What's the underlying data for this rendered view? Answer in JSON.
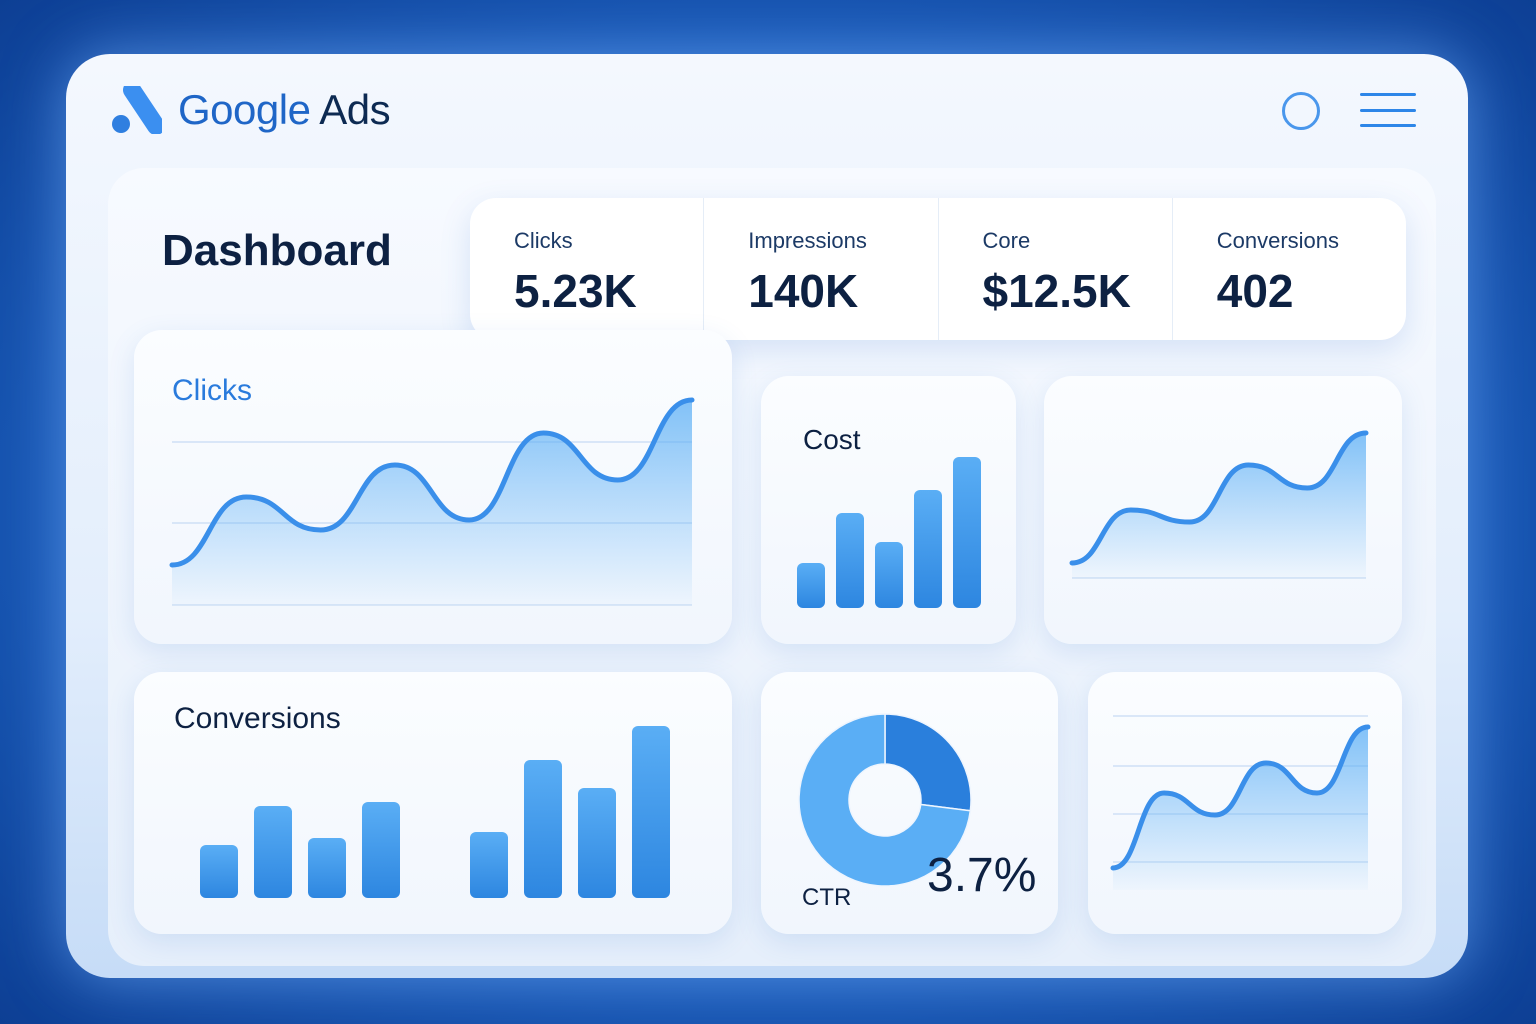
{
  "header": {
    "logo_word1": "Google",
    "logo_word2": "Ads"
  },
  "dashboard": {
    "title": "Dashboard"
  },
  "stats": [
    {
      "label": "Clicks",
      "value": "5.23K"
    },
    {
      "label": "Impressions",
      "value": "140K"
    },
    {
      "label": "Core",
      "value": "$12.5K"
    },
    {
      "label": "Conversions",
      "value": "402"
    }
  ],
  "colors": {
    "accent": "#2d86e0",
    "dark": "#0d2142",
    "light": "#5aaef5"
  },
  "chart_data": [
    {
      "id": "clicks",
      "type": "area",
      "title": "Clicks",
      "values": [
        40,
        108,
        75,
        140,
        85,
        172,
        125,
        205
      ]
    },
    {
      "id": "cost",
      "type": "bar",
      "title": "Cost",
      "values": [
        45,
        95,
        66,
        118,
        151
      ]
    },
    {
      "id": "trend1",
      "type": "area",
      "title": "",
      "values": [
        15,
        68,
        56,
        113,
        90,
        145
      ]
    },
    {
      "id": "conversions",
      "type": "bar",
      "title": "Conversions",
      "values": [
        53,
        92,
        60,
        96,
        66,
        138,
        110,
        172
      ]
    },
    {
      "id": "ctr",
      "type": "pie",
      "title": "CTR",
      "label": "3.7%",
      "highlight_fraction": 0.27
    },
    {
      "id": "trend2",
      "type": "area",
      "title": "",
      "values": [
        22,
        97,
        75,
        127,
        97,
        163
      ]
    }
  ]
}
